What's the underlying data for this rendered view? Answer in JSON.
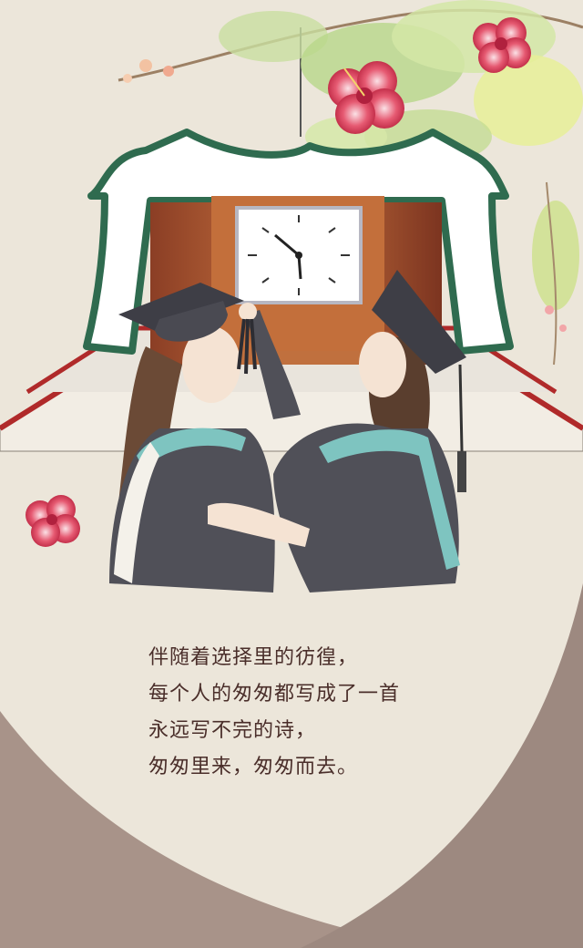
{
  "poem": {
    "lines": [
      "伴随着选择里的彷徨，",
      "每个人的匆匆都写成了一首",
      "永远写不完的诗，",
      "匆匆里来，匆匆而去。"
    ]
  },
  "illustration": {
    "subject": "two graduates in gowns and mortarboards adjusting a tassel in front of a clock tower",
    "icons": [
      "clock-icon",
      "hibiscus-flower-icon"
    ]
  },
  "colors": {
    "paper": "#ece6da",
    "lower_band": "#a89389",
    "roof_green": "#2f6b4f",
    "gown": "#505058",
    "collar_teal": "#7ec4c0",
    "hibiscus": "#e0435f",
    "text": "#4a2e2a"
  }
}
